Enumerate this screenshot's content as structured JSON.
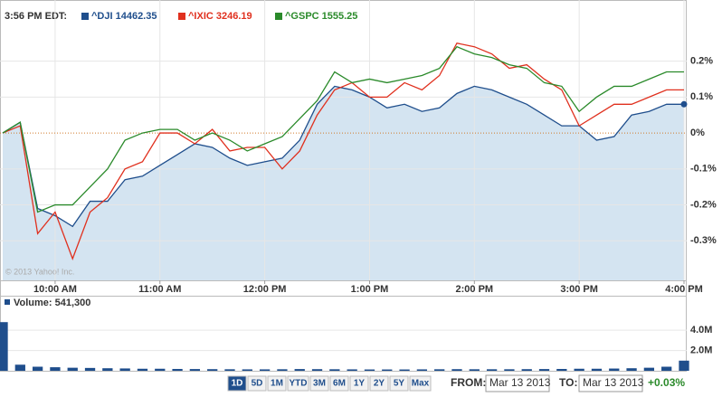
{
  "header": {
    "time": "3:56 PM EDT:"
  },
  "chart_data": [
    {
      "type": "line",
      "watermark": "© 2013 Yahoo! Inc.",
      "grid": true,
      "area_under": 0,
      "x": [
        570,
        580,
        590,
        600,
        610,
        620,
        630,
        640,
        650,
        660,
        670,
        680,
        690,
        700,
        710,
        720,
        730,
        740,
        750,
        760,
        770,
        780,
        790,
        800,
        810,
        820,
        830,
        840,
        850,
        860,
        870,
        880,
        890,
        900,
        910,
        920,
        930,
        940,
        950,
        960
      ],
      "xlim": [
        570,
        960
      ],
      "xticks": [
        {
          "value": 600,
          "label": "10:00 AM"
        },
        {
          "value": 660,
          "label": "11:00 AM"
        },
        {
          "value": 720,
          "label": "12:00 PM"
        },
        {
          "value": 780,
          "label": "1:00 PM"
        },
        {
          "value": 840,
          "label": "2:00 PM"
        },
        {
          "value": 900,
          "label": "3:00 PM"
        },
        {
          "value": 960,
          "label": "4:00 PM"
        }
      ],
      "ylim": [
        -0.41,
        0.35
      ],
      "yticks": [
        {
          "value": -0.3,
          "label": "-0.3%"
        },
        {
          "value": -0.2,
          "label": "-0.2%"
        },
        {
          "value": -0.1,
          "label": "-0.1%"
        },
        {
          "value": 0,
          "label": "0%"
        },
        {
          "value": 0.1,
          "label": "0.1%"
        },
        {
          "value": 0.2,
          "label": "0.2%"
        }
      ],
      "series": [
        {
          "name": "^DJI 14462.35",
          "color": "#1f4e8c",
          "values": [
            0,
            0.03,
            -0.21,
            -0.23,
            -0.26,
            -0.19,
            -0.19,
            -0.13,
            -0.12,
            -0.09,
            -0.06,
            -0.03,
            -0.04,
            -0.07,
            -0.09,
            -0.08,
            -0.07,
            -0.02,
            0.08,
            0.13,
            0.12,
            0.1,
            0.07,
            0.08,
            0.06,
            0.07,
            0.11,
            0.13,
            0.12,
            0.1,
            0.08,
            0.05,
            0.02,
            0.02,
            -0.02,
            -0.01,
            0.05,
            0.06,
            0.08,
            0.08
          ]
        },
        {
          "name": "^IXIC 3246.19",
          "color": "#e0301e",
          "values": [
            0,
            0.02,
            -0.28,
            -0.22,
            -0.35,
            -0.22,
            -0.18,
            -0.1,
            -0.08,
            0,
            0,
            -0.03,
            0.01,
            -0.05,
            -0.04,
            -0.04,
            -0.1,
            -0.05,
            0.05,
            0.12,
            0.14,
            0.1,
            0.1,
            0.14,
            0.12,
            0.16,
            0.25,
            0.24,
            0.22,
            0.18,
            0.19,
            0.15,
            0.12,
            0.02,
            0.05,
            0.08,
            0.08,
            0.1,
            0.12,
            0.12
          ]
        },
        {
          "name": "^GSPC 1555.25",
          "color": "#2a8a2a",
          "values": [
            0,
            0.03,
            -0.22,
            -0.2,
            -0.2,
            -0.15,
            -0.1,
            -0.02,
            0,
            0.01,
            0.01,
            -0.02,
            0,
            -0.02,
            -0.05,
            -0.03,
            -0.01,
            0.04,
            0.09,
            0.17,
            0.14,
            0.15,
            0.14,
            0.15,
            0.16,
            0.18,
            0.24,
            0.22,
            0.21,
            0.19,
            0.18,
            0.14,
            0.13,
            0.06,
            0.1,
            0.13,
            0.13,
            0.15,
            0.17,
            0.17
          ]
        }
      ]
    },
    {
      "type": "bar",
      "title": "Volume: 541,300",
      "color": "#1f4e8c",
      "x": [
        570,
        580,
        590,
        600,
        610,
        620,
        630,
        640,
        650,
        660,
        670,
        680,
        690,
        700,
        710,
        720,
        730,
        740,
        750,
        760,
        770,
        780,
        790,
        800,
        810,
        820,
        830,
        840,
        850,
        860,
        870,
        880,
        890,
        900,
        910,
        920,
        930,
        940,
        950,
        960
      ],
      "xlim": [
        570,
        960
      ],
      "ylim": [
        0,
        5800000
      ],
      "yticks": [
        {
          "value": 2000000,
          "label": "2.0M"
        },
        {
          "value": 4000000,
          "label": "4.0M"
        }
      ],
      "values": [
        4800000,
        600000,
        400000,
        350000,
        300000,
        280000,
        250000,
        230000,
        200000,
        200000,
        180000,
        170000,
        160000,
        150000,
        140000,
        140000,
        150000,
        170000,
        160000,
        150000,
        140000,
        130000,
        130000,
        130000,
        140000,
        150000,
        160000,
        150000,
        150000,
        150000,
        160000,
        170000,
        180000,
        200000,
        200000,
        220000,
        250000,
        300000,
        400000,
        1000000
      ]
    }
  ],
  "controls": {
    "ranges": [
      "1D",
      "5D",
      "1M",
      "YTD",
      "3M",
      "6M",
      "1Y",
      "2Y",
      "5Y",
      "Max"
    ],
    "selected": 0,
    "from_label": "FROM:",
    "from": "Mar 13 2013",
    "to_label": "TO:",
    "to": "Mar 13 2013",
    "change": "+0.03%"
  }
}
